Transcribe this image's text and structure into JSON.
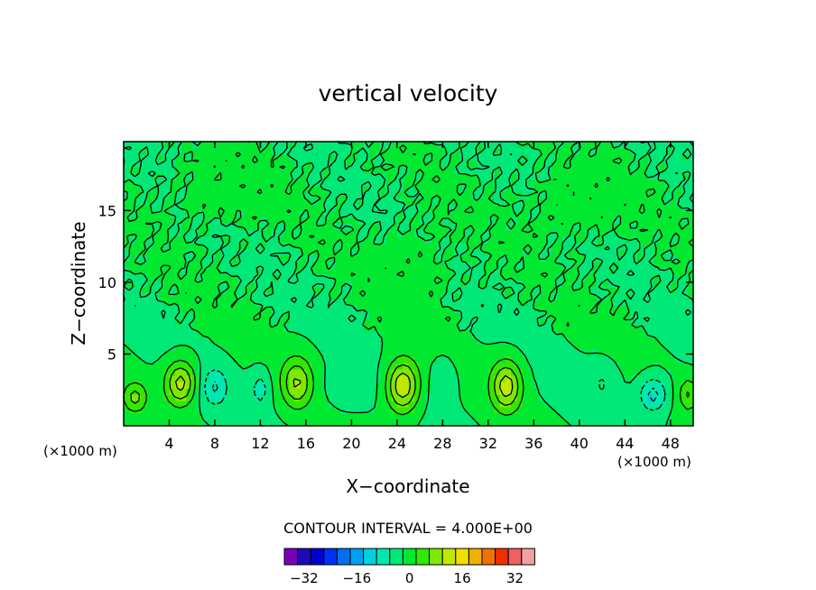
{
  "chart_data": {
    "type": "heatmap",
    "title": "vertical velocity",
    "xlabel": "X−coordinate",
    "ylabel": "Z−coordinate",
    "x_unit": "(×1000 m)",
    "x_unit_right": "(×1000 m)",
    "xlim": [
      0,
      50
    ],
    "ylim": [
      0,
      19.8
    ],
    "x_ticks": [
      4,
      8,
      12,
      16,
      20,
      24,
      28,
      32,
      36,
      40,
      44,
      48
    ],
    "x_tick_labels": [
      "4",
      "8",
      "12",
      "16",
      "20",
      "24",
      "28",
      "32",
      "36",
      "40",
      "44",
      "48"
    ],
    "y_ticks": [
      5,
      10,
      15
    ],
    "y_tick_labels": [
      "5",
      "10",
      "15"
    ],
    "contour_interval_label": "CONTOUR INTERVAL = 4.000E+00",
    "contour_interval": 4.0,
    "colorbar": {
      "levels": [
        -36,
        -32,
        -28,
        -24,
        -20,
        -16,
        -12,
        -8,
        -4,
        0,
        4,
        8,
        12,
        16,
        20,
        24,
        28,
        32,
        36
      ],
      "tick_values": [
        -32,
        -16,
        0,
        16,
        32
      ],
      "tick_labels": [
        "−32",
        "−16",
        "0",
        "16",
        "32"
      ],
      "colors": [
        "#7a00b8",
        "#1c0ab4",
        "#0000cc",
        "#0030f0",
        "#0070f0",
        "#00a0f0",
        "#00d0e0",
        "#00e8b0",
        "#00e878",
        "#00e830",
        "#30e800",
        "#80e800",
        "#c0e800",
        "#f0e000",
        "#f0b000",
        "#f07000",
        "#f03000",
        "#f06060",
        "#f0a0a0"
      ]
    },
    "background_color": "#00e830",
    "features": [
      {
        "x": 1.0,
        "z": 2.0,
        "amp": 9,
        "sx": 1.0,
        "sz": 1.0
      },
      {
        "x": 5.0,
        "z": 3.0,
        "amp": 14,
        "sx": 1.3,
        "sz": 1.5
      },
      {
        "x": 8.0,
        "z": 2.7,
        "amp": -8,
        "sx": 1.1,
        "sz": 1.3
      },
      {
        "x": 12.0,
        "z": 2.6,
        "amp": -6,
        "sx": 0.8,
        "sz": 1.2
      },
      {
        "x": 15.2,
        "z": 3.0,
        "amp": 12,
        "sx": 1.3,
        "sz": 1.7
      },
      {
        "x": 19.8,
        "z": 2.7,
        "amp": -4,
        "sx": 1.8,
        "sz": 1.3
      },
      {
        "x": 24.5,
        "z": 2.8,
        "amp": 16,
        "sx": 1.4,
        "sz": 1.8
      },
      {
        "x": 28.0,
        "z": 3.0,
        "amp": -4,
        "sx": 1.0,
        "sz": 1.5
      },
      {
        "x": 33.6,
        "z": 2.8,
        "amp": 14,
        "sx": 1.3,
        "sz": 1.7
      },
      {
        "x": 42.0,
        "z": 3.0,
        "amp": -4,
        "sx": 1.2,
        "sz": 1.4
      },
      {
        "x": 46.5,
        "z": 2.2,
        "amp": -10,
        "sx": 1.2,
        "sz": 1.2
      },
      {
        "x": 49.6,
        "z": 2.2,
        "amp": 8,
        "sx": 0.8,
        "sz": 1.1
      },
      {
        "x": 9.0,
        "z": 16.5,
        "amp": 3,
        "sx": 4.0,
        "sz": 2.0
      },
      {
        "x": 25.0,
        "z": 11.0,
        "amp": 3,
        "sx": 3.0,
        "sz": 2.5
      },
      {
        "x": 40.0,
        "z": 15.5,
        "amp": 3,
        "sx": 4.0,
        "sz": 2.0
      }
    ]
  }
}
